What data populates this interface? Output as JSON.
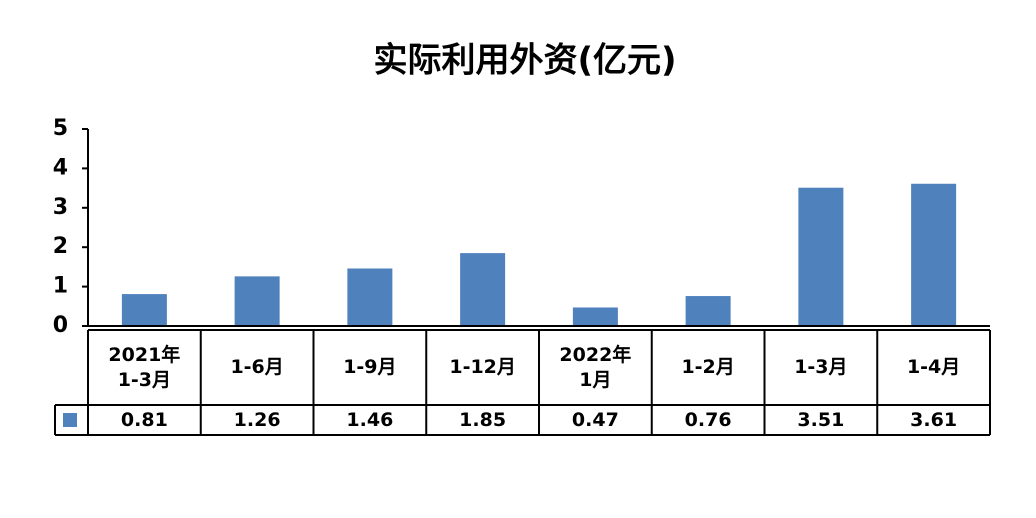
{
  "chart_data": {
    "type": "bar",
    "title": "实际利用外资(亿元)",
    "categories": [
      "2021年\n1-3月",
      "1-6月",
      "1-9月",
      "1-12月",
      "2022年\n1月",
      "1-2月",
      "1-3月",
      "1-4月"
    ],
    "values": [
      0.81,
      1.26,
      1.46,
      1.85,
      0.47,
      0.76,
      3.51,
      3.61
    ],
    "color": "#4f81bd",
    "ylim": [
      0,
      5
    ],
    "yticks": [
      0,
      1,
      2,
      3,
      4,
      5
    ],
    "grid": false,
    "data_table": true
  }
}
